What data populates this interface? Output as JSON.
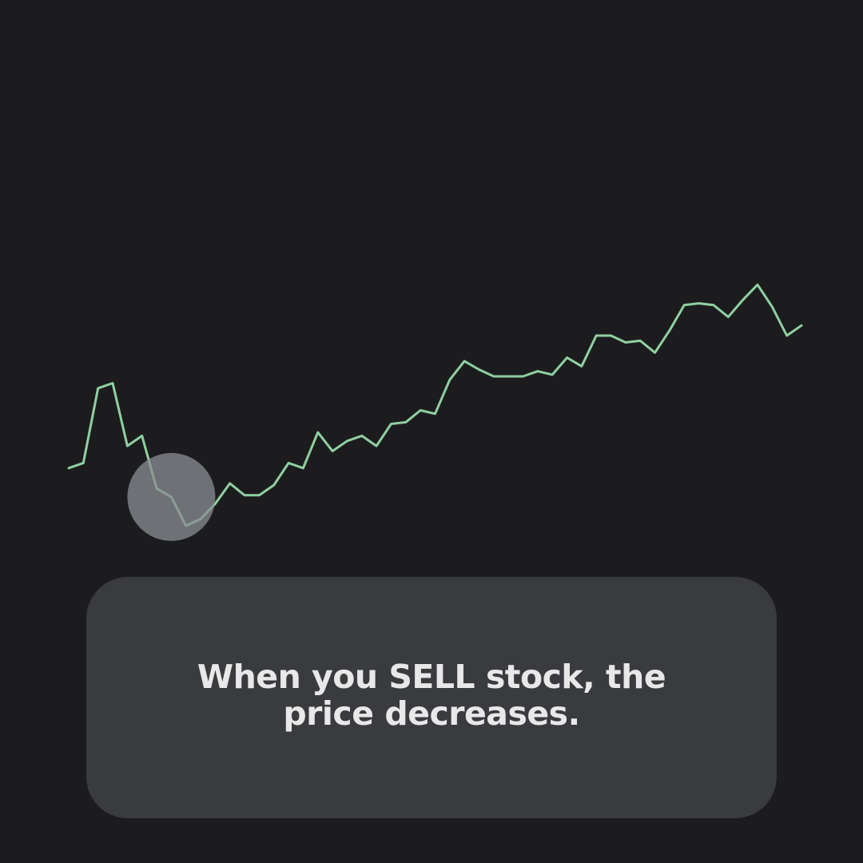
{
  "caption": {
    "text": "When you SELL stock, the price decreases."
  },
  "colors": {
    "background": "#1c1c1e",
    "line": "#8fd0a0",
    "highlight": "#8a8e94",
    "card": "#3a3b3e",
    "caption_text": "#e8e8e8"
  },
  "chart_data": {
    "type": "line",
    "title": "",
    "xlabel": "",
    "ylabel": "",
    "grid": false,
    "axes_visible": false,
    "x": [
      0,
      1,
      2,
      3,
      4,
      5,
      6,
      7,
      8,
      9,
      10,
      11,
      12,
      13,
      14,
      15,
      16,
      17,
      18,
      19,
      20,
      21,
      22,
      23,
      24,
      25,
      26,
      27,
      28,
      29,
      30,
      31,
      32,
      33,
      34,
      35,
      36,
      37,
      38,
      39,
      40,
      41,
      42,
      43,
      44,
      45,
      46,
      47,
      48,
      49,
      50
    ],
    "series": [
      {
        "values": [
          34,
          37,
          81,
          84,
          47,
          53,
          22,
          17,
          0,
          4,
          13,
          25,
          18,
          18,
          24,
          37,
          34,
          55,
          44,
          50,
          53,
          47,
          60,
          61,
          68,
          66,
          86,
          97,
          92,
          88,
          88,
          88,
          91,
          89,
          99,
          94,
          112,
          112,
          108,
          109,
          102,
          115,
          130,
          131,
          130,
          123,
          133,
          142,
          129,
          112,
          118
        ]
      }
    ],
    "ylim": [
      -10,
      160
    ],
    "highlight": {
      "x": 7,
      "y": 17,
      "note": "shaded marker around the dip"
    }
  }
}
